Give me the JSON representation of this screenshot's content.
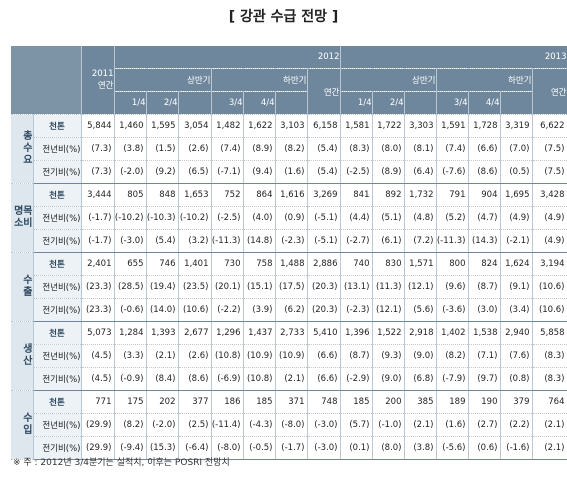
{
  "title": "[ 강관 수급 전망 ]",
  "header": {
    "y2011": "2011",
    "y2011_sub": "연간",
    "y2012": "2012",
    "y2013": "2013",
    "half1": "상반기",
    "half2": "하반기",
    "annual": "연간",
    "q1": "1/4",
    "q2": "2/4",
    "q3": "3/4",
    "q4": "4/4"
  },
  "groups": [
    {
      "label": "총\n수\n요",
      "rows": [
        {
          "unit": "천톤",
          "values": [
            "5,844",
            "1,460",
            "1,595",
            "3,054",
            "1,482",
            "1,622",
            "3,103",
            "6,158",
            "1,581",
            "1,722",
            "3,303",
            "1,591",
            "1,728",
            "3,319",
            "6,622"
          ]
        },
        {
          "unit": "전년비(%)",
          "values": [
            "(7.3)",
            "(3.8)",
            "(1.5)",
            "(2.6)",
            "(7.4)",
            "(8.9)",
            "(8.2)",
            "(5.4)",
            "(8.3)",
            "(8.0)",
            "(8.1)",
            "(7.4)",
            "(6.6)",
            "(7.0)",
            "(7.5)"
          ]
        },
        {
          "unit": "전기비(%)",
          "values": [
            "(7.3)",
            "(-2.0)",
            "(9.2)",
            "(6.5)",
            "(-7.1)",
            "(9.4)",
            "(1.6)",
            "(5.4)",
            "(-2.5)",
            "(8.9)",
            "(6.4)",
            "(-7.6)",
            "(8.6)",
            "(0.5)",
            "(7.5)"
          ]
        }
      ]
    },
    {
      "label": "명목\n소비",
      "rows": [
        {
          "unit": "천톤",
          "values": [
            "3,444",
            "805",
            "848",
            "1,653",
            "752",
            "864",
            "1,616",
            "3,269",
            "841",
            "892",
            "1,732",
            "791",
            "904",
            "1,695",
            "3,428"
          ]
        },
        {
          "unit": "전년비(%)",
          "values": [
            "(-1.7)",
            "(-10.2)",
            "(-10.3)",
            "(-10.2)",
            "(-2.5)",
            "(4.0)",
            "(0.9)",
            "(-5.1)",
            "(4.4)",
            "(5.1)",
            "(4.8)",
            "(5.2)",
            "(4.7)",
            "(4.9)",
            "(4.9)"
          ]
        },
        {
          "unit": "전기비(%)",
          "values": [
            "(-1.7)",
            "(-3.0)",
            "(5.4)",
            "(3.2)",
            "(-11.3)",
            "(14.8)",
            "(-2.3)",
            "(-5.1)",
            "(-2.7)",
            "(6.1)",
            "(7.2)",
            "(-11.3)",
            "(14.3)",
            "(-2.1)",
            "(4.9)"
          ]
        }
      ]
    },
    {
      "label": "수\n출",
      "rows": [
        {
          "unit": "천톤",
          "values": [
            "2,401",
            "655",
            "746",
            "1,401",
            "730",
            "758",
            "1,488",
            "2,886",
            "740",
            "830",
            "1,571",
            "800",
            "824",
            "1,624",
            "3,194"
          ]
        },
        {
          "unit": "전년비(%)",
          "values": [
            "(23.3)",
            "(28.5)",
            "(19.4)",
            "(23.5)",
            "(20.1)",
            "(15.1)",
            "(17.5)",
            "(20.3)",
            "(13.1)",
            "(11.3)",
            "(12.1)",
            "(9.6)",
            "(8.7)",
            "(9.1)",
            "(10.6)"
          ]
        },
        {
          "unit": "전기비(%)",
          "values": [
            "(23.3)",
            "(-0.6)",
            "(14.0)",
            "(10.6)",
            "(-2.2)",
            "(3.9)",
            "(6.2)",
            "(20.3)",
            "(-2.3)",
            "(12.1)",
            "(5.6)",
            "(-3.6)",
            "(3.0)",
            "(3.4)",
            "(10.6)"
          ]
        }
      ]
    },
    {
      "label": "생\n산",
      "rows": [
        {
          "unit": "천톤",
          "values": [
            "5,073",
            "1,284",
            "1,393",
            "2,677",
            "1,296",
            "1,437",
            "2,733",
            "5,410",
            "1,396",
            "1,522",
            "2,918",
            "1,402",
            "1,538",
            "2,940",
            "5,858"
          ]
        },
        {
          "unit": "전년비(%)",
          "values": [
            "(4.5)",
            "(3.3)",
            "(2.1)",
            "(2.6)",
            "(10.8)",
            "(10.9)",
            "(10.9)",
            "(6.6)",
            "(8.7)",
            "(9.3)",
            "(9.0)",
            "(8.2)",
            "(7.1)",
            "(7.6)",
            "(8.3)"
          ]
        },
        {
          "unit": "전기비(%)",
          "values": [
            "(4.5)",
            "(-0.9)",
            "(8.4)",
            "(8.6)",
            "(-6.9)",
            "(10.8)",
            "(2.1)",
            "(6.6)",
            "(-2.9)",
            "(9.0)",
            "(6.8)",
            "(-7.9)",
            "(9.7)",
            "(0.8)",
            "(8.3)"
          ]
        }
      ]
    },
    {
      "label": "수\n입",
      "rows": [
        {
          "unit": "천톤",
          "values": [
            "771",
            "175",
            "202",
            "377",
            "186",
            "185",
            "371",
            "748",
            "185",
            "200",
            "385",
            "189",
            "190",
            "379",
            "764"
          ]
        },
        {
          "unit": "전년비(%)",
          "values": [
            "(29.9)",
            "(8.2)",
            "(-2.0)",
            "(2.5)",
            "(-11.4)",
            "(-4.3)",
            "(-8.0)",
            "(-3.0)",
            "(5.7)",
            "(-1.0)",
            "(2.1)",
            "(1.6)",
            "(2.7)",
            "(2.2)",
            "(2.1)"
          ]
        },
        {
          "unit": "전기비(%)",
          "values": [
            "(29.9)",
            "(-9.4)",
            "(15.3)",
            "(-6.4)",
            "(-8.0)",
            "(-0.5)",
            "(-1.7)",
            "(-3.0)",
            "(0.1)",
            "(8.0)",
            "(3.8)",
            "(-5.6)",
            "(0.6)",
            "(-1.6)",
            "(2.1)"
          ]
        }
      ]
    }
  ],
  "note": "※ 주 : 2012년 3/4분기는 실적치, 이후는 POSRI 전망치"
}
